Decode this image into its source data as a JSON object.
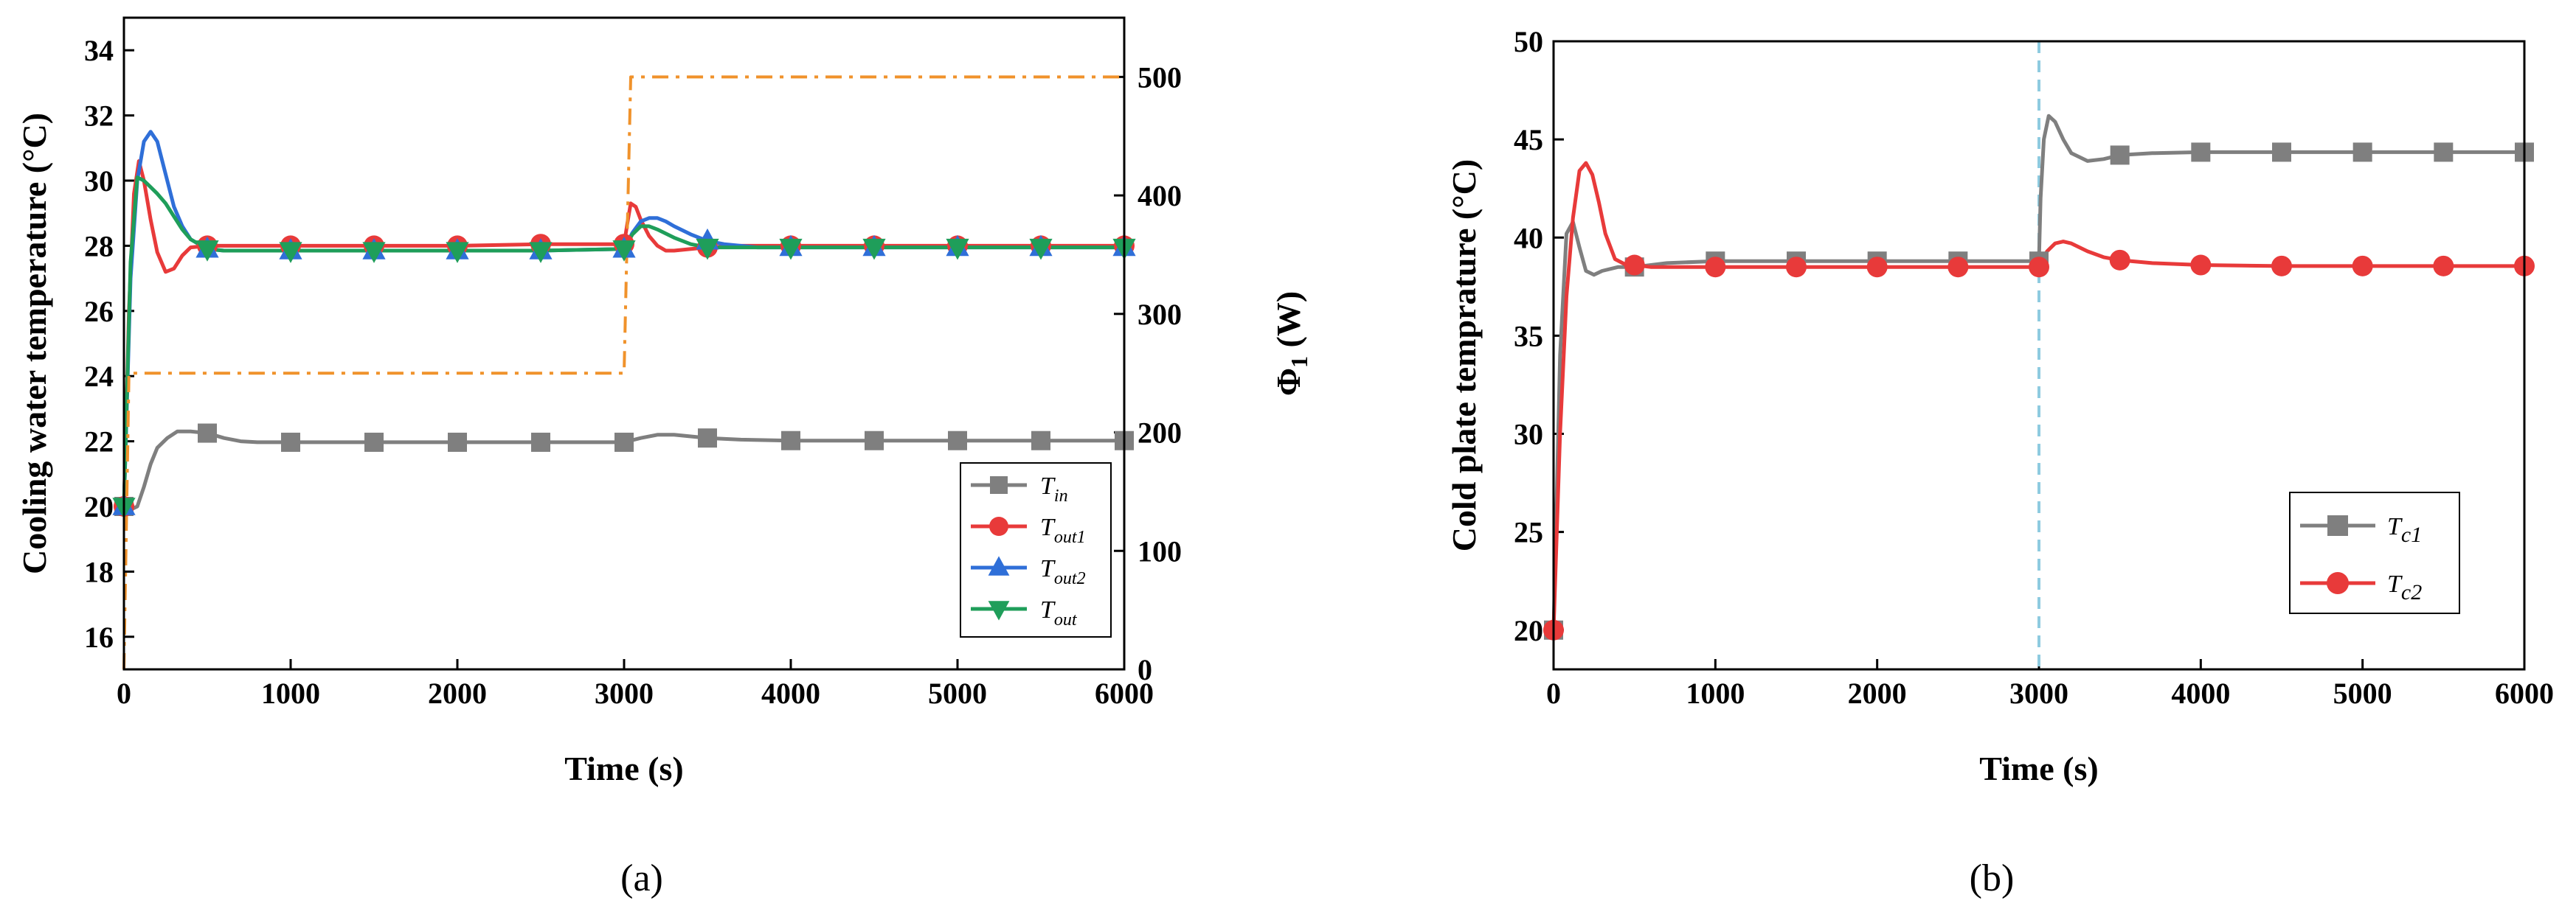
{
  "figure": {
    "panel_a_label": "(a)",
    "panel_b_label": "(b)"
  },
  "chart_data": [
    {
      "type": "line",
      "panel": "a",
      "title": "",
      "xlabel": "Time (s)",
      "ylabel": "Cooling water temperature (°C)",
      "y2label_main": "Φ",
      "y2label_sub": "1",
      "y2label_unit": " (W)",
      "xlim": [
        0,
        6000
      ],
      "ylim": [
        15,
        35
      ],
      "y2lim": [
        0,
        550
      ],
      "xticks": [
        0,
        1000,
        2000,
        3000,
        4000,
        5000,
        6000
      ],
      "yticks": [
        16,
        18,
        20,
        22,
        24,
        26,
        28,
        30,
        32,
        34
      ],
      "y2ticks": [
        0,
        100,
        200,
        300,
        400,
        500
      ],
      "legend_position": "bottom-right",
      "series": [
        {
          "name": "T",
          "sub": "in",
          "color": "#7f7f7f",
          "marker": "square",
          "x": [
            0,
            40,
            80,
            120,
            160,
            200,
            260,
            320,
            400,
            500,
            600,
            700,
            800,
            1000,
            1500,
            2000,
            2500,
            3000,
            3100,
            3200,
            3300,
            3400,
            3500,
            3700,
            4000,
            4500,
            5000,
            5500,
            6000
          ],
          "y": [
            20.0,
            19.9,
            20.0,
            20.6,
            21.3,
            21.8,
            22.1,
            22.3,
            22.3,
            22.25,
            22.1,
            22.0,
            21.97,
            21.97,
            21.97,
            21.97,
            21.97,
            21.97,
            22.1,
            22.2,
            22.2,
            22.15,
            22.1,
            22.05,
            22.02,
            22.02,
            22.02,
            22.02,
            22.02
          ],
          "marker_x": [
            0,
            500,
            1000,
            1500,
            2000,
            2500,
            3000,
            3500,
            4000,
            4500,
            5000,
            5500,
            6000
          ]
        },
        {
          "name": "T",
          "sub": "out1",
          "color": "#e83a3a",
          "marker": "circle",
          "x": [
            0,
            30,
            60,
            90,
            120,
            160,
            200,
            250,
            300,
            350,
            400,
            500,
            600,
            800,
            1000,
            1500,
            2000,
            2500,
            3000,
            3020,
            3040,
            3070,
            3100,
            3150,
            3200,
            3250,
            3300,
            3400,
            3500,
            3700,
            4000,
            4500,
            5000,
            5500,
            6000
          ],
          "y": [
            20.0,
            26.0,
            29.6,
            30.6,
            30.0,
            28.8,
            27.8,
            27.2,
            27.3,
            27.7,
            27.95,
            28.0,
            28.0,
            28.0,
            28.0,
            28.0,
            28.0,
            28.05,
            28.05,
            28.7,
            29.3,
            29.2,
            28.8,
            28.3,
            28.0,
            27.85,
            27.85,
            27.9,
            27.95,
            28.0,
            28.0,
            28.0,
            28.0,
            28.0,
            28.0
          ],
          "marker_x": [
            0,
            500,
            1000,
            1500,
            2000,
            2500,
            3000,
            3500,
            4000,
            4500,
            5000,
            5500,
            6000
          ]
        },
        {
          "name": "T",
          "sub": "out2",
          "color": "#2f6fd8",
          "marker": "triangle-up",
          "x": [
            0,
            40,
            80,
            120,
            160,
            200,
            250,
            300,
            350,
            400,
            500,
            600,
            800,
            1000,
            1500,
            2000,
            2500,
            3000,
            3050,
            3100,
            3150,
            3200,
            3250,
            3300,
            3400,
            3500,
            3600,
            3800,
            4000,
            4500,
            5000,
            5500,
            6000
          ],
          "y": [
            20.0,
            27.0,
            30.0,
            31.2,
            31.5,
            31.2,
            30.2,
            29.2,
            28.6,
            28.2,
            27.9,
            27.85,
            27.85,
            27.85,
            27.85,
            27.85,
            27.85,
            27.9,
            28.4,
            28.75,
            28.85,
            28.85,
            28.75,
            28.6,
            28.35,
            28.15,
            28.05,
            27.95,
            27.95,
            27.95,
            27.95,
            27.95,
            27.95
          ],
          "marker_x": [
            0,
            500,
            1000,
            1500,
            2000,
            2500,
            3000,
            3500,
            4000,
            4500,
            5000,
            5500,
            6000
          ]
        },
        {
          "name": "T",
          "sub": "out",
          "color": "#1f9e5a",
          "marker": "triangle-down",
          "x": [
            0,
            40,
            80,
            120,
            160,
            200,
            250,
            300,
            350,
            400,
            500,
            600,
            800,
            1000,
            1500,
            2000,
            2500,
            3000,
            3050,
            3100,
            3150,
            3200,
            3300,
            3400,
            3500,
            3700,
            4000,
            4500,
            5000,
            5500,
            6000
          ],
          "y": [
            20.0,
            27.5,
            30.1,
            30.0,
            29.8,
            29.6,
            29.3,
            28.9,
            28.5,
            28.2,
            27.9,
            27.85,
            27.85,
            27.85,
            27.85,
            27.85,
            27.85,
            27.9,
            28.35,
            28.6,
            28.6,
            28.5,
            28.25,
            28.05,
            27.95,
            27.95,
            27.95,
            27.95,
            27.95,
            27.95,
            27.95
          ],
          "marker_x": [
            0,
            500,
            1000,
            1500,
            2000,
            2500,
            3000,
            3500,
            4000,
            4500,
            5000,
            5500,
            6000
          ]
        },
        {
          "name": "Φ1",
          "axis": "right",
          "color": "#f0922b",
          "line_style": "dash-dot",
          "x": [
            0,
            30,
            2999,
            3000,
            3040,
            6000
          ],
          "y": [
            0,
            250,
            250,
            250,
            500,
            500
          ]
        }
      ]
    },
    {
      "type": "line",
      "panel": "b",
      "title": "",
      "xlabel": "Time (s)",
      "ylabel": "Cold plate temprature (°C)",
      "xlim": [
        0,
        6000
      ],
      "ylim": [
        18,
        50
      ],
      "xticks": [
        0,
        1000,
        2000,
        3000,
        4000,
        5000,
        6000
      ],
      "yticks": [
        20,
        25,
        30,
        35,
        40,
        45,
        50
      ],
      "vline_x": 3000,
      "vline_color": "#8ecbe0",
      "legend_position": "right-middle",
      "series": [
        {
          "name": "T",
          "sub": "c1",
          "color": "#7f7f7f",
          "marker": "square",
          "x": [
            0,
            40,
            80,
            120,
            160,
            200,
            250,
            300,
            400,
            500,
            700,
            1000,
            1500,
            2000,
            2500,
            3000,
            3010,
            3030,
            3060,
            3100,
            3150,
            3200,
            3300,
            3400,
            3500,
            3700,
            4000,
            4500,
            5000,
            5500,
            6000
          ],
          "y": [
            20,
            34,
            40.2,
            40.8,
            39.5,
            38.3,
            38.1,
            38.3,
            38.5,
            38.5,
            38.7,
            38.8,
            38.8,
            38.8,
            38.8,
            38.8,
            42,
            45,
            46.2,
            45.9,
            45.0,
            44.3,
            43.9,
            44.0,
            44.2,
            44.3,
            44.35,
            44.35,
            44.35,
            44.35,
            44.35
          ],
          "marker_x": [
            0,
            500,
            1000,
            1500,
            2000,
            2500,
            3000,
            3500,
            4000,
            4500,
            5000,
            5500,
            6000
          ]
        },
        {
          "name": "T",
          "sub": "c2",
          "color": "#e83a3a",
          "marker": "circle",
          "x": [
            0,
            40,
            80,
            120,
            160,
            200,
            240,
            280,
            320,
            380,
            450,
            500,
            600,
            800,
            1000,
            1500,
            2000,
            2500,
            3000,
            3050,
            3100,
            3150,
            3200,
            3300,
            3400,
            3500,
            3700,
            4000,
            4500,
            5000,
            5500,
            6000
          ],
          "y": [
            20,
            30,
            37,
            41,
            43.4,
            43.8,
            43.2,
            41.8,
            40.2,
            38.9,
            38.6,
            38.6,
            38.5,
            38.5,
            38.5,
            38.5,
            38.5,
            38.5,
            38.5,
            39.3,
            39.7,
            39.8,
            39.7,
            39.3,
            39.0,
            38.85,
            38.7,
            38.6,
            38.55,
            38.55,
            38.55,
            38.55
          ],
          "marker_x": [
            0,
            500,
            1000,
            1500,
            2000,
            2500,
            3000,
            3500,
            4000,
            4500,
            5000,
            5500,
            6000
          ]
        }
      ]
    }
  ]
}
